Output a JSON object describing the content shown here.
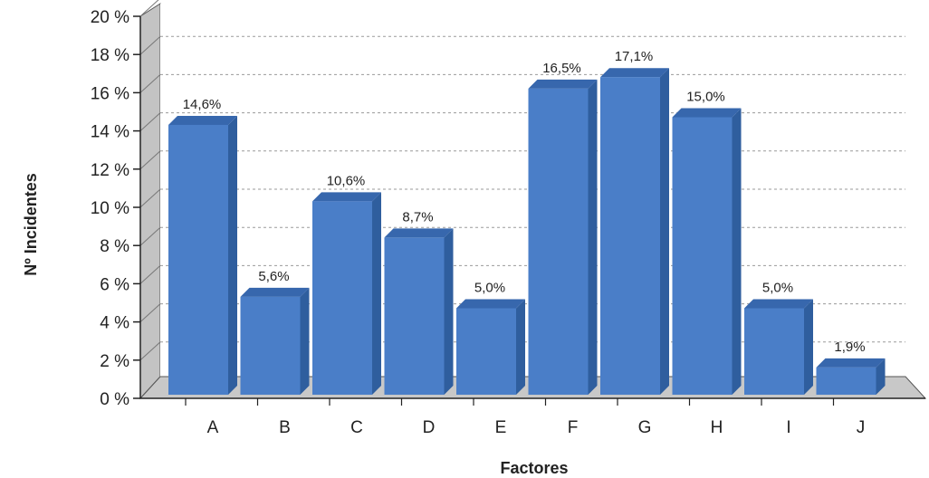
{
  "chart_data": {
    "type": "bar",
    "categories": [
      "A",
      "B",
      "C",
      "D",
      "E",
      "F",
      "G",
      "H",
      "I",
      "J"
    ],
    "values": [
      14.6,
      5.6,
      10.6,
      8.7,
      5.0,
      16.5,
      17.1,
      15.0,
      5.0,
      1.9
    ],
    "data_labels": [
      "14,6%",
      "5,6%",
      "10,6%",
      "8,7%",
      "5,0%",
      "16,5%",
      "17,1%",
      "15,0%",
      "5,0%",
      "1,9%"
    ],
    "y_ticks": [
      0,
      2,
      4,
      6,
      8,
      10,
      12,
      14,
      16,
      18,
      20
    ],
    "y_tick_labels": [
      "0 %",
      "2 %",
      "4 %",
      "6 %",
      "8 %",
      "10 %",
      "12 %",
      "14 %",
      "16 %",
      "18 %",
      "20 %"
    ],
    "ylim": [
      0,
      20
    ],
    "xlabel": "Factores",
    "ylabel": "Nº Incidentes",
    "grid": true,
    "legend": "none",
    "colors": {
      "bar_front": "#4a7ec8",
      "bar_side": "#2f5e9e",
      "bar_top": "#3767ad",
      "back_wall": "#ffffff",
      "side_wall": "#c3c3c3",
      "floor": "#c8c8c8"
    }
  }
}
